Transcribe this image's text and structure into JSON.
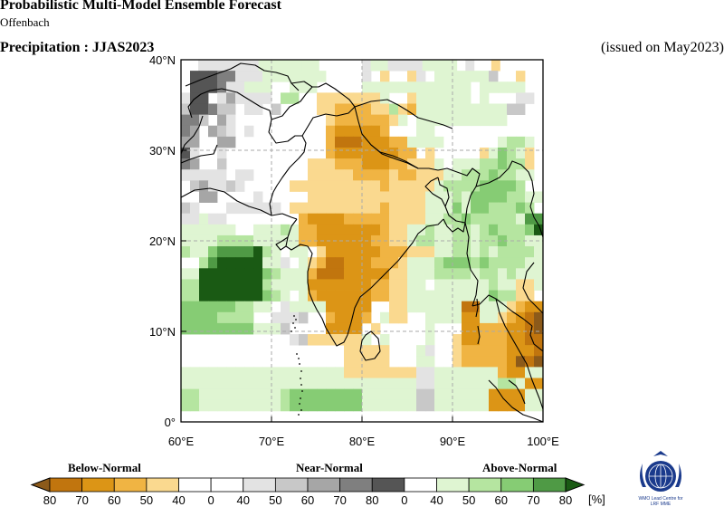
{
  "header": {
    "title": "Probabilistic Multi-Model Ensemble Forecast",
    "subtitle": "Offenbach",
    "variable": "Precipitation : JJAS2023",
    "issued": "(issued on May2023)"
  },
  "map": {
    "lon_range": [
      60,
      100
    ],
    "lat_range": [
      0,
      40
    ],
    "cell_size_deg": 2.5,
    "x_ticks": [
      "60°E",
      "70°E",
      "80°E",
      "90°E",
      "100°E"
    ],
    "y_ticks": [
      "0°",
      "10°N",
      "20°N",
      "30°N",
      "40°N"
    ],
    "grid_lines": "dashed"
  },
  "legend": {
    "categories": [
      "Below-Normal",
      "Near-Normal",
      "Above-Normal"
    ],
    "unit": "[%]",
    "labels": [
      "80",
      "70",
      "60",
      "50",
      "40",
      "0",
      "40",
      "50",
      "60",
      "70",
      "80",
      "0",
      "40",
      "50",
      "60",
      "70",
      "80"
    ],
    "colors": {
      "B5": "#8c5a1a",
      "B4": "#c1750e",
      "B3": "#dc9516",
      "B2": "#f0b443",
      "B1": "#fad98f",
      "W": "#ffffff",
      "N1": "#e3e3e3",
      "N2": "#c8c8c8",
      "N3": "#a6a6a6",
      "N4": "#7f7f7f",
      "N5": "#555555",
      "A1": "#dff5d2",
      "A2": "#b5e5a0",
      "A3": "#86cc74",
      "A4": "#4f9a45",
      "A5": "#1a5a14"
    }
  },
  "logo": {
    "org": "WMO Lead Centre for",
    "org2": "LRF MME"
  },
  "forecast_cells": [
    "W W N1 N1 N1 N1 N1 N1 N1 A1 A1 A1 A1 A1 A1 A1 W W W W W N1 A1 A1 N1 N1 N1 N1 A1 A1 A1 A1 W N1 W W B1 W W W W W",
    "W N5 N5 N5 N4 N4 N1 N1 N1 A1 A1 A1 A1 A1 A1 A1 W W W W N1 W B1 W W B1 N1 W A1 A1 A1 A1 A1 A1 N2 W W B1 W W",
    "W N5 N5 N5 N4 N1 N1 A1 A1 A1 W W A1 A1 A1 W W W W W A1 A1 A1 A1 A1 A1 A1 A1 A1 A1 A1 A1 W A1 A1 A1 A1 A1 W W",
    "N1 N5 N5 W N1 N3 N1 N1 N1 N1 W A2 A2 W W B1 B1 B1 B1 B1 B1 B1 A1 W W B1 A1 A1 A1 A1 A1 A1 W A1 W W W N1 N1 W",
    "N2 N5 N5 N4 N2 N2 W N1 N1 W N2 W W W W B1 B1 B2 B2 B2 B2 B1 B1 A2 B1 B2 A1 A1 A1 A1 A1 A1 A1 A1 A1 A1 N2 N2 W W",
    "N4 N4 N2 W N3 N1 W W W W W W W W W W B1 B2 B2 B2 B2 B2 B2 B1 A1 W A1 A1 A1 A1 A1 A1 A1 A1 A1 A1 W W W W",
    "N4 N3 W N3 N2 N1 W N1 W W W W W W W W B2 B3 B3 B3 B3 B3 B2 W W W A1 A1 W W W W W W W W W W W W",
    "N3 N3 W W N3 N3 W W W W W W W W W W B2 B4 B4 B4 B3 B3 B3 B2 B2 A1 A1 A1 A1 W W W W W W A1 A2 A2 A1 W",
    "N5 N1 W W N1 W W W W W W W W W W W B2 B3 B3 B3 B3 B3 B3 B3 B2 B2 W B1 W W W W W B1 A1 A3 A2 A1 B1 W",
    "N4 N3 W W N2 W W W W W W W W W B1 B1 B1 B2 B2 B2 B3 B3 B3 B2 B2 B1 B1 B1 A1 W A1 A1 A1 A2 A2 A3 A2 A2 B1 W",
    "N1 N1 N1 N1 N1 W N1 N1 W W W W W W B1 B1 B1 B1 B1 B2 B2 B2 B2 B1 B2 B2 B1 B1 B1 A1 A1 A2 A2 A2 A3 A2 A2 A1 A1 W",
    "W N2 N3 N1 N1 N2 N1 W W W W W B1 B1 B1 B1 B1 B1 B1 B1 B1 B1 B2 B1 B1 B1 B1 B1 A1 A2 A2 A2 A2 A3 A3 A3 A3 A2 W W",
    "W W N3 N3 W W W W N1 W W W W W B1 B1 B1 B1 B1 B1 B1 B1 B1 B1 B1 B1 B1 A1 A1 A1 A2 A1 A3 A3 A3 A3 A2 A2 A1 A1",
    "N2 N1 W W W N1 N1 N1 N1 N1 N1 W B1 B1 B1 B1 B1 B1 B1 B1 B1 B1 B2 B1 B1 B1 B1 A1 A1 A1 A3 A1 A3 A3 A2 A2 A2 A3 A2 W",
    "N1 N1 A1 N1 N1 W W W W W W W W B2 B3 B3 B3 B3 B2 B2 B2 B2 B2 B1 B1 B1 B1 A1 A1 A2 A2 A3 A2 A2 A2 A2 A2 A1 A4 A4",
    "A1 A1 A1 A1 A1 A1 W W A1 A1 A1 A2 A1 B2 B2 B3 B3 B3 B3 B3 B3 B3 B2 B1 B1 A1 A1 A2 A1 A1 A2 A2 A1 A2 A3 A2 A2 A2 A3 A5",
    "A1 A1 A1 A1 A2 A2 A2 A2 A1 A1 A1 A1 A1 B2 B2 B3 B3 B3 B3 B3 B3 B2 B2 B1 B1 A1 A2 A2 A1 A1 A2 A2 A1 A2 A2 A3 A2 A2 A1 A1",
    "A2 A1 A1 A3 A4 A4 A4 A4 A5 A2 A1 W A1 A1 W B1 B3 B3 B3 B3 B3 B3 B2 B2 B2 B1 B1 B1 A1 A1 A2 A2 A1 A2 A1 A2 A2 A2 A2 A1",
    "W W A2 A4 A5 A5 A5 A5 A5 A1 A1 N1 W A1 B1 B2 B4 B4 B3 B3 B3 B2 B2 B2 B1 A1 A1 A1 A2 A3 A3 A3 A2 A3 A2 A2 A2 A2 A1 A1",
    "A1 A1 A5 A5 A5 A5 A5 A5 A5 A3 A2 A1 A1 A1 B2 B4 B4 B4 B3 B3 B3 B3 B3 B1 B1 A1 A1 A1 A2 A2 A2 A2 A1 A2 A2 A1 A2 A1 A1 A1",
    "A2 A2 A5 A5 A5 A5 A5 A5 A5 A2 A1 A1 A1 A1 B3 B3 B3 B3 B3 B3 B3 B2 B2 B1 B1 A1 A1 W A1 A1 A1 A1 A1 A1 A2 A1 A1 B1 B1 A1",
    "A2 A2 A5 A5 A5 A5 A5 A5 A5 A3 A2 A1 W A1 B2 B3 B3 B3 B3 B3 B3 B2 B2 B1 B1 A1 A1 A1 A1 A1 A1 A1 A1 A1 A3 A2 A2 B1 B1 W",
    "A3 A3 A3 A3 A3 A3 A2 A2 A1 A1 W N1 A1 A1 A1 A1 B3 B3 B3 B3 B3 W W B1 B1 A1 A1 A1 A1 A1 A1 B4 B4 A1 A1 A1 B1 B2 B3 B3",
    "A3 A3 A3 A3 A2 A2 A2 A2 W W N1 N1 N1 N2 W W B2 B3 B3 B3 B2 W A1 B1 B1 W W A1 A1 A1 A1 B3 B3 A1 A1 B1 B2 B3 B4 B5",
    "A3 A3 A3 A3 A3 A3 A3 A3 A1 A1 A1 N2 W W W W B3 B3 B3 B3 W B1 W W W W W A1 W W W B3 B3 B2 B2 B2 B3 B3 B4 B5",
    "W W W W W W W W W W W W N1 N2 B1 B1 B1 B1 B1 B1 A1 W A1 W W W W A1 W W B1 B3 B3 B2 B2 B2 B3 B3 B4 B4",
    "W W W W W W W W W W W W W W W W W W B1 B1 B1 B1 B1 W W W A1 N1 W W B1 B2 B2 B2 B2 B2 B3 B3 B3 B4",
    "W W W W W W W W W W W W W W W W W W B1 B1 B1 B1 B1 W W W A1 A1 W W B1 B2 B2 B2 B2 B2 B3 B5 B4 B5",
    "A1 A1 A1 A1 A1 A1 A1 A1 A1 A1 A1 A1 A1 A1 A1 A1 A1 A1 B1 B1 B1 B1 B1 B1 B1 B1 N1 N1 A1 A1 A1 A1 A1 A1 A1 B2 B3 B3 A1 A1",
    "A1 A1 A1 A1 A1 A1 A1 A1 A1 A1 A1 A1 A1 A1 A1 A1 A1 A1 A1 A1 A1 A1 A1 A1 A1 A1 N1 N1 A1 A1 A1 A1 A1 A1 A1 A2 A2 A1 B3 B3",
    "A2 A2 A1 A1 A1 A1 A1 A1 A1 A1 A1 A2 A3 A3 A3 A3 A3 A3 A3 A3 A1 A1 A1 A1 A1 A1 N2 N2 A1 A1 A1 A1 A1 A1 B3 B3 B3 B3 A1 A1",
    "A2 A2 A1 A1 A1 A1 A1 A1 A1 A1 A1 A2 A3 A3 A3 A3 A3 A3 A3 A3 A1 A1 A1 A1 A1 A1 N2 N2 A1 A1 A1 A1 A1 A1 B3 B3 B3 B3 A1 A1",
    "W W W W W W W W W W W W W W W W W W W W W W W W W W W W W W W W W W W W W W W W"
  ]
}
